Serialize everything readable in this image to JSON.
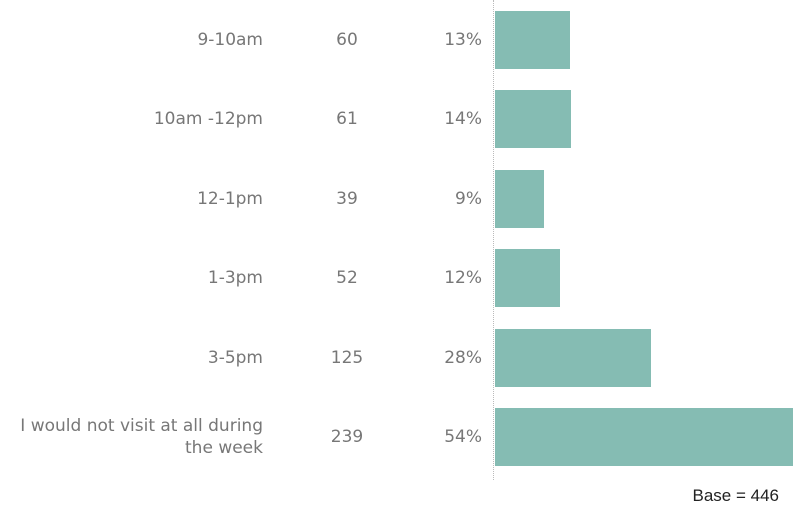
{
  "chart_data": {
    "type": "bar",
    "categories": [
      "9-10am",
      "10am -12pm",
      "12-1pm",
      "1-3pm",
      "3-5pm",
      "I would not visit at all during the week"
    ],
    "values": [
      60,
      61,
      39,
      52,
      125,
      239
    ],
    "percentages": [
      13,
      14,
      9,
      12,
      28,
      54
    ],
    "percentage_labels": [
      "13%",
      "14%",
      "9%",
      "12%",
      "28%",
      "54%"
    ],
    "color": "#85bcb3",
    "note": "Base = 446"
  }
}
